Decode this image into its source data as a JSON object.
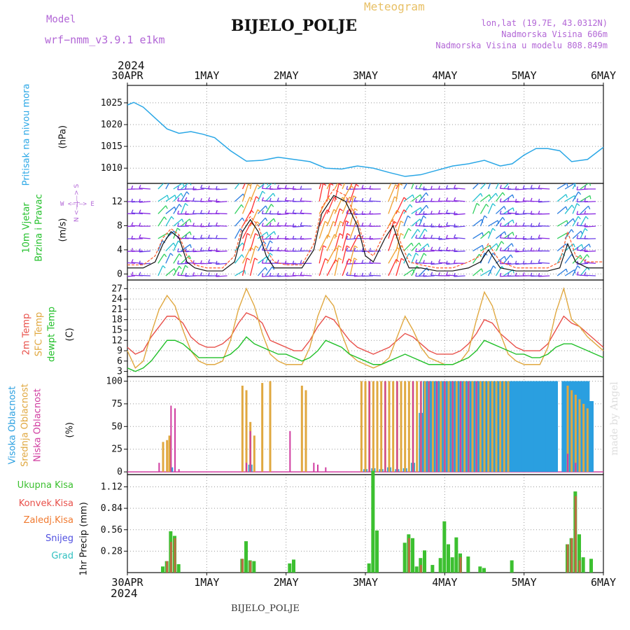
{
  "header": {
    "model_label": "Model",
    "model_name": "wrf−nmm_v3.9.1 e1km",
    "station": "BIJELO_POLJE",
    "product": "Meteogram",
    "lonlat": "lon,lat (19.7E, 43.0312N)",
    "altitude": "Nadmorska Visina 606m",
    "model_altitude": "Nadmorska Visina u modelu 808.849m",
    "footer_station": "BIJELO_POLJE",
    "watermark": "made by Angel"
  },
  "time_axis": {
    "year": "2024",
    "labels": [
      "30APR",
      "1MAY",
      "2MAY",
      "3MAY",
      "4MAY",
      "5MAY",
      "6MAY"
    ]
  },
  "panel_labels": {
    "pressure": {
      "name": "Pritisak na nivou mora",
      "unit": "(hPa)"
    },
    "wind": {
      "name1": "10m Vjetar",
      "name2": "Brzina i Pravac",
      "unit": "(m/s)",
      "compass_ns": "N <—|—> S",
      "compass_we": "W <—|—> E"
    },
    "temp": {
      "t2m": "2m Temp",
      "sfc": "SFC Temp",
      "dew": "dewpt Temp",
      "unit": "(C)"
    },
    "cloud": {
      "high": "Visoka Oblacnost",
      "mid": "Srednja Oblacnost",
      "low": "Niska Oblacnost",
      "unit": "(%)"
    },
    "precip": {
      "total": "Ukupna Kisa",
      "conv": "Konvek.Kisa",
      "snow_freeze": "Zaledj.Kisa",
      "snow": "Snijeg",
      "hail": "Grad",
      "unit": "1hr Precip (mm)"
    }
  },
  "colors": {
    "pressure": "#2aa7e6",
    "t2m": "#e8504a",
    "sfc": "#e0a840",
    "dew": "#22c02a",
    "wind_speed": "#111111",
    "wind_gust": "#ff5a2a",
    "cloud_high": "#2a9fe0",
    "cloud_mid": "#e0a840",
    "cloud_low": "#d03ca0",
    "precip_total": "#3cc030",
    "precip_conv": "#e8504a",
    "precip_freeze": "#f07a30",
    "precip_snow": "#5050e0",
    "precip_hail": "#30c0c0",
    "barb_palette": [
      "#8a2be2",
      "#6a3de8",
      "#2a7de0",
      "#22c0d0",
      "#30d060",
      "#9ad040",
      "#f0a030",
      "#ff3030"
    ]
  },
  "chart_data": [
    {
      "type": "line",
      "panel": "pressure",
      "ylim": [
        1006.5,
        1029
      ],
      "yticks": [
        1010,
        1015,
        1020,
        1025
      ],
      "x_days": [
        0,
        0.08,
        0.2,
        0.35,
        0.5,
        0.65,
        0.8,
        0.95,
        1.1,
        1.3,
        1.5,
        1.7,
        1.9,
        2.1,
        2.3,
        2.5,
        2.7,
        2.9,
        3.1,
        3.3,
        3.5,
        3.7,
        3.9,
        4.1,
        4.3,
        4.5,
        4.7,
        4.85,
        5.0,
        5.15,
        5.3,
        5.45,
        5.6,
        5.8,
        6.0
      ],
      "series": [
        {
          "values": [
            1024.5,
            1025.1,
            1024.0,
            1021.5,
            1019.0,
            1018.0,
            1018.4,
            1017.8,
            1017.0,
            1014.0,
            1011.6,
            1011.8,
            1012.5,
            1012.0,
            1011.5,
            1010.0,
            1009.8,
            1010.5,
            1010.0,
            1009.0,
            1008.1,
            1008.5,
            1009.5,
            1010.5,
            1011.0,
            1011.8,
            1010.5,
            1011.0,
            1013.0,
            1014.5,
            1014.5,
            1014.0,
            1011.5,
            1012.0,
            1014.8
          ]
        }
      ]
    },
    {
      "type": "line",
      "panel": "wind",
      "ylim": [
        -1,
        15
      ],
      "yticks": [
        0,
        4,
        8,
        12
      ],
      "x_days": [
        0,
        0.2,
        0.35,
        0.45,
        0.55,
        0.65,
        0.75,
        0.85,
        1.0,
        1.2,
        1.35,
        1.45,
        1.55,
        1.65,
        1.75,
        1.85,
        2.0,
        2.2,
        2.35,
        2.45,
        2.6,
        2.75,
        2.9,
        3.0,
        3.1,
        3.25,
        3.35,
        3.45,
        3.55,
        3.7,
        3.9,
        4.1,
        4.3,
        4.45,
        4.55,
        4.7,
        4.9,
        5.1,
        5.3,
        5.45,
        5.55,
        5.65,
        5.8,
        6.0
      ],
      "series": [
        {
          "values": [
            1,
            1,
            2,
            5,
            7,
            6,
            2,
            1,
            0.5,
            0.5,
            2,
            7,
            9,
            7,
            3,
            1,
            1,
            1,
            4,
            10,
            13,
            12,
            8,
            3,
            2,
            6,
            8,
            4,
            1,
            1,
            0.5,
            0.5,
            1,
            2,
            4,
            1,
            0.5,
            0.5,
            0.5,
            1,
            5,
            2,
            1,
            1
          ]
        },
        {
          "values": [
            1.5,
            1.5,
            3,
            6,
            7.5,
            6.5,
            3,
            1.5,
            1,
            1,
            3,
            8,
            9.5,
            8,
            4,
            2,
            1.5,
            1.5,
            5,
            11,
            14,
            13,
            9,
            4,
            3,
            7,
            9,
            5,
            2,
            1.5,
            1,
            1,
            2,
            3,
            5,
            2,
            1,
            1,
            1,
            2,
            7,
            3,
            2,
            2
          ]
        }
      ]
    },
    {
      "type": "line",
      "panel": "temperature",
      "ylim": [
        1.5,
        29.5
      ],
      "yticks": [
        3,
        6,
        9,
        12,
        15,
        18,
        21,
        24,
        27
      ],
      "x_days": [
        0,
        0.1,
        0.2,
        0.3,
        0.4,
        0.5,
        0.6,
        0.7,
        0.8,
        0.9,
        1.0,
        1.1,
        1.2,
        1.3,
        1.4,
        1.5,
        1.6,
        1.7,
        1.8,
        1.9,
        2.0,
        2.1,
        2.2,
        2.3,
        2.4,
        2.5,
        2.6,
        2.7,
        2.8,
        2.9,
        3.0,
        3.1,
        3.2,
        3.3,
        3.4,
        3.5,
        3.6,
        3.7,
        3.8,
        3.9,
        4.0,
        4.1,
        4.2,
        4.3,
        4.4,
        4.5,
        4.6,
        4.7,
        4.8,
        4.9,
        5.0,
        5.1,
        5.2,
        5.3,
        5.4,
        5.5,
        5.6,
        5.7,
        5.8,
        5.9,
        6.0
      ],
      "series": [
        {
          "name": "2m Temp",
          "values": [
            10,
            8,
            9,
            13,
            16,
            19,
            19,
            17,
            13,
            11,
            10,
            10,
            11,
            13,
            17,
            20,
            19,
            17,
            12,
            11,
            10,
            9,
            9,
            12,
            16,
            19,
            18,
            15,
            12,
            10,
            9,
            8,
            9,
            10,
            12,
            14,
            13,
            11,
            9,
            8,
            8,
            8,
            9,
            11,
            14,
            18,
            17,
            14,
            12,
            10,
            9,
            9,
            9,
            11,
            15,
            19,
            17,
            16,
            14,
            12,
            10
          ]
        },
        {
          "name": "SFC Temp",
          "values": [
            9,
            4,
            6,
            14,
            21,
            25,
            22,
            15,
            9,
            6,
            5,
            5,
            6,
            12,
            21,
            27,
            22,
            14,
            8,
            6,
            5,
            5,
            5,
            10,
            19,
            25,
            22,
            14,
            8,
            6,
            5,
            4,
            5,
            7,
            13,
            19,
            15,
            10,
            7,
            6,
            5,
            5,
            6,
            9,
            18,
            26,
            22,
            14,
            8,
            6,
            5,
            5,
            5,
            10,
            20,
            27,
            18,
            16,
            13,
            11,
            9
          ]
        },
        {
          "name": "dewpt Temp",
          "values": [
            4,
            3,
            4,
            6,
            9,
            12,
            12,
            11,
            9,
            7,
            7,
            7,
            7,
            8,
            10,
            13,
            11,
            10,
            9,
            8,
            8,
            7,
            6,
            7,
            9,
            12,
            11,
            10,
            8,
            7,
            6,
            5,
            5,
            6,
            7,
            8,
            7,
            6,
            5,
            5,
            5,
            5,
            6,
            7,
            9,
            12,
            11,
            10,
            9,
            8,
            8,
            7,
            7,
            8,
            10,
            11,
            11,
            10,
            9,
            8,
            7
          ]
        }
      ]
    },
    {
      "type": "bar",
      "panel": "cloud",
      "ylim": [
        -3,
        105
      ],
      "yticks": [
        0,
        25,
        50,
        75,
        100
      ],
      "series": [
        {
          "name": "Visoka Oblacnost",
          "x_days": [
            0.55,
            1.55,
            3.0,
            3.1,
            3.2,
            3.3,
            3.4,
            3.5,
            3.6,
            3.7,
            3.75,
            3.8,
            3.85,
            3.9,
            3.95,
            4.0,
            4.05,
            4.1,
            4.15,
            4.2,
            4.25,
            4.3,
            4.35,
            4.4,
            4.45,
            4.5,
            4.55,
            4.6,
            4.65,
            4.7,
            4.75,
            4.8,
            4.85,
            4.9,
            4.95,
            5.0,
            5.05,
            5.1,
            5.15,
            5.2,
            5.25,
            5.3,
            5.35,
            5.4,
            5.5,
            5.55,
            5.6,
            5.65,
            5.7,
            5.75,
            5.8,
            5.85
          ],
          "values": [
            5,
            8,
            3,
            4,
            3,
            5,
            3,
            4,
            10,
            65,
            100,
            100,
            100,
            100,
            100,
            100,
            100,
            100,
            100,
            100,
            100,
            100,
            100,
            100,
            100,
            100,
            100,
            100,
            100,
            100,
            100,
            100,
            100,
            100,
            100,
            100,
            100,
            100,
            100,
            100,
            100,
            100,
            100,
            100,
            100,
            100,
            100,
            100,
            100,
            100,
            100,
            78
          ]
        },
        {
          "name": "Srednja Oblacnost",
          "x_days": [
            0.45,
            0.5,
            0.53,
            1.45,
            1.5,
            1.55,
            1.6,
            1.7,
            1.8,
            2.2,
            2.25,
            2.95,
            3.0,
            3.05,
            3.1,
            3.15,
            3.2,
            3.25,
            3.3,
            3.35,
            3.4,
            3.45,
            3.5,
            3.55,
            3.6,
            3.65,
            3.7,
            3.75,
            3.8,
            3.85,
            3.9,
            3.95,
            4.0,
            4.05,
            4.1,
            4.15,
            4.2,
            4.25,
            4.3,
            4.35,
            4.4,
            4.45,
            4.5,
            4.55,
            4.6,
            4.65,
            4.7,
            4.75,
            4.8,
            5.55,
            5.6,
            5.65,
            5.7,
            5.75,
            5.8
          ],
          "values": [
            33,
            35,
            40,
            95,
            90,
            55,
            40,
            98,
            100,
            95,
            90,
            100,
            100,
            100,
            100,
            100,
            100,
            100,
            100,
            100,
            100,
            100,
            100,
            100,
            100,
            100,
            100,
            100,
            100,
            100,
            100,
            100,
            100,
            100,
            100,
            100,
            100,
            100,
            100,
            100,
            100,
            100,
            100,
            100,
            100,
            100,
            100,
            100,
            100,
            95,
            90,
            85,
            80,
            75,
            70
          ]
        },
        {
          "name": "Niska Oblacnost",
          "x_days": [
            0.4,
            0.55,
            0.6,
            0.65,
            1.5,
            1.55,
            2.05,
            2.35,
            2.4,
            2.5,
            3.05,
            3.25,
            3.4,
            3.6,
            3.7,
            3.8,
            3.9,
            4.0,
            4.1,
            4.2,
            4.3,
            4.4,
            5.55,
            5.65
          ],
          "values": [
            10,
            73,
            70,
            3,
            10,
            45,
            45,
            10,
            8,
            5,
            100,
            100,
            100,
            100,
            100,
            100,
            100,
            100,
            100,
            100,
            100,
            100,
            20,
            10
          ]
        }
      ]
    },
    {
      "type": "bar",
      "panel": "precipitation",
      "ylim": [
        0,
        1.28
      ],
      "yticks": [
        0.28,
        0.56,
        0.84,
        1.12
      ],
      "series": [
        {
          "name": "Ukupna Kisa",
          "x_days": [
            0.45,
            0.5,
            0.55,
            0.6,
            0.65,
            1.45,
            1.5,
            1.55,
            1.6,
            2.05,
            2.1,
            3.05,
            3.1,
            3.15,
            3.5,
            3.55,
            3.6,
            3.65,
            3.7,
            3.75,
            3.85,
            3.95,
            4.0,
            4.05,
            4.1,
            4.15,
            4.2,
            4.3,
            4.45,
            4.5,
            4.85,
            5.55,
            5.6,
            5.65,
            5.7,
            5.75,
            5.85
          ],
          "values": [
            0.08,
            0.15,
            0.54,
            0.48,
            0.11,
            0.18,
            0.41,
            0.16,
            0.15,
            0.12,
            0.17,
            0.12,
            1.33,
            0.55,
            0.39,
            0.5,
            0.45,
            0.08,
            0.19,
            0.29,
            0.1,
            0.19,
            0.67,
            0.37,
            0.2,
            0.46,
            0.25,
            0.21,
            0.08,
            0.06,
            0.16,
            0.37,
            0.45,
            1.06,
            0.5,
            0.2,
            0.18
          ]
        },
        {
          "name": "Konvek.Kisa",
          "x_days": [
            0.5,
            0.55,
            0.6,
            1.45,
            1.55,
            3.55,
            3.7,
            4.2,
            5.55,
            5.6,
            5.65,
            5.7
          ],
          "values": [
            0.15,
            0.4,
            0.45,
            0.18,
            0.15,
            0.45,
            0.1,
            0.2,
            0.37,
            0.45,
            1.0,
            0.16
          ]
        }
      ]
    }
  ]
}
